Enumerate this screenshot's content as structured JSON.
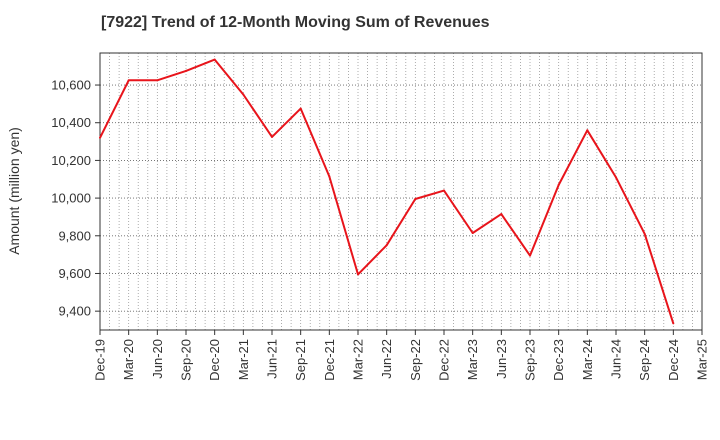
{
  "chart_data": {
    "type": "line",
    "title": "[7922]  Trend of 12-Month Moving Sum of Revenues",
    "xlabel": "",
    "ylabel": "Amount (million yen)",
    "categories": [
      "Dec-19",
      "Mar-20",
      "Jun-20",
      "Sep-20",
      "Dec-20",
      "Mar-21",
      "Jun-21",
      "Sep-21",
      "Dec-21",
      "Mar-22",
      "Jun-22",
      "Sep-22",
      "Dec-22",
      "Mar-23",
      "Jun-23",
      "Sep-23",
      "Dec-23",
      "Mar-24",
      "Jun-24",
      "Sep-24",
      "Dec-24",
      "Mar-25"
    ],
    "x_tick_labels": [
      "Dec-19",
      "Mar-20",
      "Jun-20",
      "Sep-20",
      "Dec-20",
      "Mar-21",
      "Jun-21",
      "Sep-21",
      "Dec-21",
      "Mar-22",
      "Jun-22",
      "Sep-22",
      "Dec-22",
      "Mar-23",
      "Jun-23",
      "Sep-23",
      "Dec-23",
      "Mar-24",
      "Jun-24",
      "Sep-24",
      "Dec-24",
      "Mar-25"
    ],
    "y_ticks": [
      9400,
      9600,
      9800,
      10000,
      10200,
      10400,
      10600
    ],
    "y_tick_labels": [
      "9,400",
      "9,600",
      "9,800",
      "10,000",
      "10,200",
      "10,400",
      "10,600"
    ],
    "ylim": [
      9300,
      10770
    ],
    "grid": true,
    "series": [
      {
        "color": "#e8141b",
        "values": [
          10320,
          10625,
          10625,
          10675,
          10735,
          10550,
          10325,
          10475,
          10115,
          9595,
          9750,
          9995,
          10040,
          9815,
          9915,
          9695,
          10070,
          10360,
          10110,
          9810,
          9335,
          null
        ]
      }
    ]
  }
}
